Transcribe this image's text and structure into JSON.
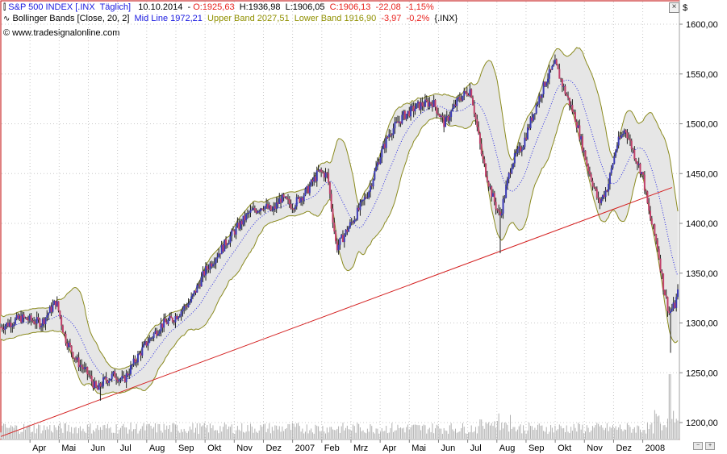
{
  "header": {
    "line1": {
      "symbol": "S&P 500 INDEX [.INX  Täglich]",
      "date": "10.10.2014",
      "open": "O:1925,63",
      "high": "H:1936,98",
      "low": "L:1906,05",
      "close": "C:1906,13",
      "change": "-22,08",
      "change_pct": "-1,15%"
    },
    "line2": {
      "indicator": "Bollinger Bands [Close, 20, 2]",
      "mid": "Mid Line 1972,21",
      "upper": "Upper Band 2027,51",
      "lower": "Lower Band 1916,90",
      "change": "-3,97",
      "change_pct": "-0,2%",
      "symbol": "{.INX}"
    },
    "copyright": "© www.tradesignalonline.com"
  },
  "axis": {
    "currency_symbol": "$"
  },
  "close_button": "×",
  "zoom_buttons": [
    "−",
    "+"
  ],
  "colors": {
    "up_candle": "#3b3bb5",
    "down_candle": "#c0406a",
    "wick": "#202020",
    "band": "#8a8a1e",
    "band_fill": "#e6e6e6",
    "mid_line": "#2a2ae0",
    "trend_line": "#d42020",
    "volume": "#b0b0b0",
    "header_red": "#e8201c",
    "header_blue": "#1a1ae0",
    "header_olive": "#909000",
    "grid": "#c8c8c8",
    "frame": "#c00000"
  },
  "chart_data": {
    "type": "candlestick",
    "title": "S&P 500 INDEX [.INX  Täglich]",
    "ylim": [
      1190,
      1610
    ],
    "y_ticks": [
      "1200,00",
      "1250,00",
      "1300,00",
      "1350,00",
      "1400,00",
      "1450,00",
      "1500,00",
      "1550,00",
      "1600,00"
    ],
    "y_tick_values": [
      1200,
      1250,
      1300,
      1350,
      1400,
      1450,
      1500,
      1550,
      1600
    ],
    "x_labels": [
      "Apr",
      "Mai",
      "Jun",
      "Jul",
      "Aug",
      "Sep",
      "Okt",
      "Nov",
      "Dez",
      "2007",
      "Feb",
      "Mrz",
      "Apr",
      "Mai",
      "Jun",
      "Jul",
      "Aug",
      "Sep",
      "Okt",
      "Nov",
      "Dez",
      "2008"
    ],
    "x_label_month_index": [
      1,
      2,
      3,
      4,
      5,
      6,
      7,
      8,
      9,
      10,
      11,
      12,
      13,
      14,
      15,
      16,
      17,
      18,
      19,
      20,
      21,
      22
    ],
    "months_span": 23.2,
    "close_keypoints": [
      [
        0,
        1296
      ],
      [
        0.7,
        1305
      ],
      [
        1.4,
        1300
      ],
      [
        1.9,
        1322
      ],
      [
        2.2,
        1285
      ],
      [
        2.6,
        1262
      ],
      [
        3.0,
        1248
      ],
      [
        3.3,
        1232
      ],
      [
        3.5,
        1241
      ],
      [
        3.9,
        1248
      ],
      [
        4.2,
        1242
      ],
      [
        4.6,
        1262
      ],
      [
        5.0,
        1280
      ],
      [
        5.5,
        1298
      ],
      [
        5.9,
        1304
      ],
      [
        6.5,
        1322
      ],
      [
        7.0,
        1352
      ],
      [
        7.5,
        1372
      ],
      [
        8.0,
        1392
      ],
      [
        8.5,
        1410
      ],
      [
        9.0,
        1418
      ],
      [
        9.3,
        1412
      ],
      [
        9.6,
        1425
      ],
      [
        10.0,
        1418
      ],
      [
        10.5,
        1433
      ],
      [
        10.9,
        1452
      ],
      [
        11.2,
        1448
      ],
      [
        11.5,
        1375
      ],
      [
        11.8,
        1390
      ],
      [
        12.2,
        1410
      ],
      [
        12.6,
        1432
      ],
      [
        13.0,
        1468
      ],
      [
        13.3,
        1490
      ],
      [
        13.8,
        1508
      ],
      [
        14.3,
        1518
      ],
      [
        14.8,
        1522
      ],
      [
        15.2,
        1500
      ],
      [
        15.7,
        1525
      ],
      [
        16.1,
        1535
      ],
      [
        16.5,
        1465
      ],
      [
        16.8,
        1432
      ],
      [
        17.1,
        1406
      ],
      [
        17.5,
        1460
      ],
      [
        17.9,
        1480
      ],
      [
        18.3,
        1515
      ],
      [
        18.7,
        1545
      ],
      [
        19.0,
        1560
      ],
      [
        19.3,
        1535
      ],
      [
        19.7,
        1505
      ],
      [
        20.1,
        1458
      ],
      [
        20.5,
        1420
      ],
      [
        20.8,
        1437
      ],
      [
        21.1,
        1478
      ],
      [
        21.4,
        1495
      ],
      [
        21.7,
        1470
      ],
      [
        22.0,
        1448
      ],
      [
        22.2,
        1412
      ],
      [
        22.5,
        1378
      ],
      [
        22.7,
        1338
      ],
      [
        22.9,
        1310
      ],
      [
        23.1,
        1318
      ],
      [
        23.2,
        1330
      ]
    ],
    "lows_marked": [
      {
        "month": 3.4,
        "value": 1222
      },
      {
        "month": 17.1,
        "value": 1370
      },
      {
        "month": 22.95,
        "value": 1270
      }
    ],
    "trend_line": {
      "start": [
        0,
        1186
      ],
      "end": [
        23.0,
        1436
      ]
    },
    "bollinger": {
      "period": 20,
      "std_dev": 2
    },
    "grid": true,
    "volume": true
  }
}
